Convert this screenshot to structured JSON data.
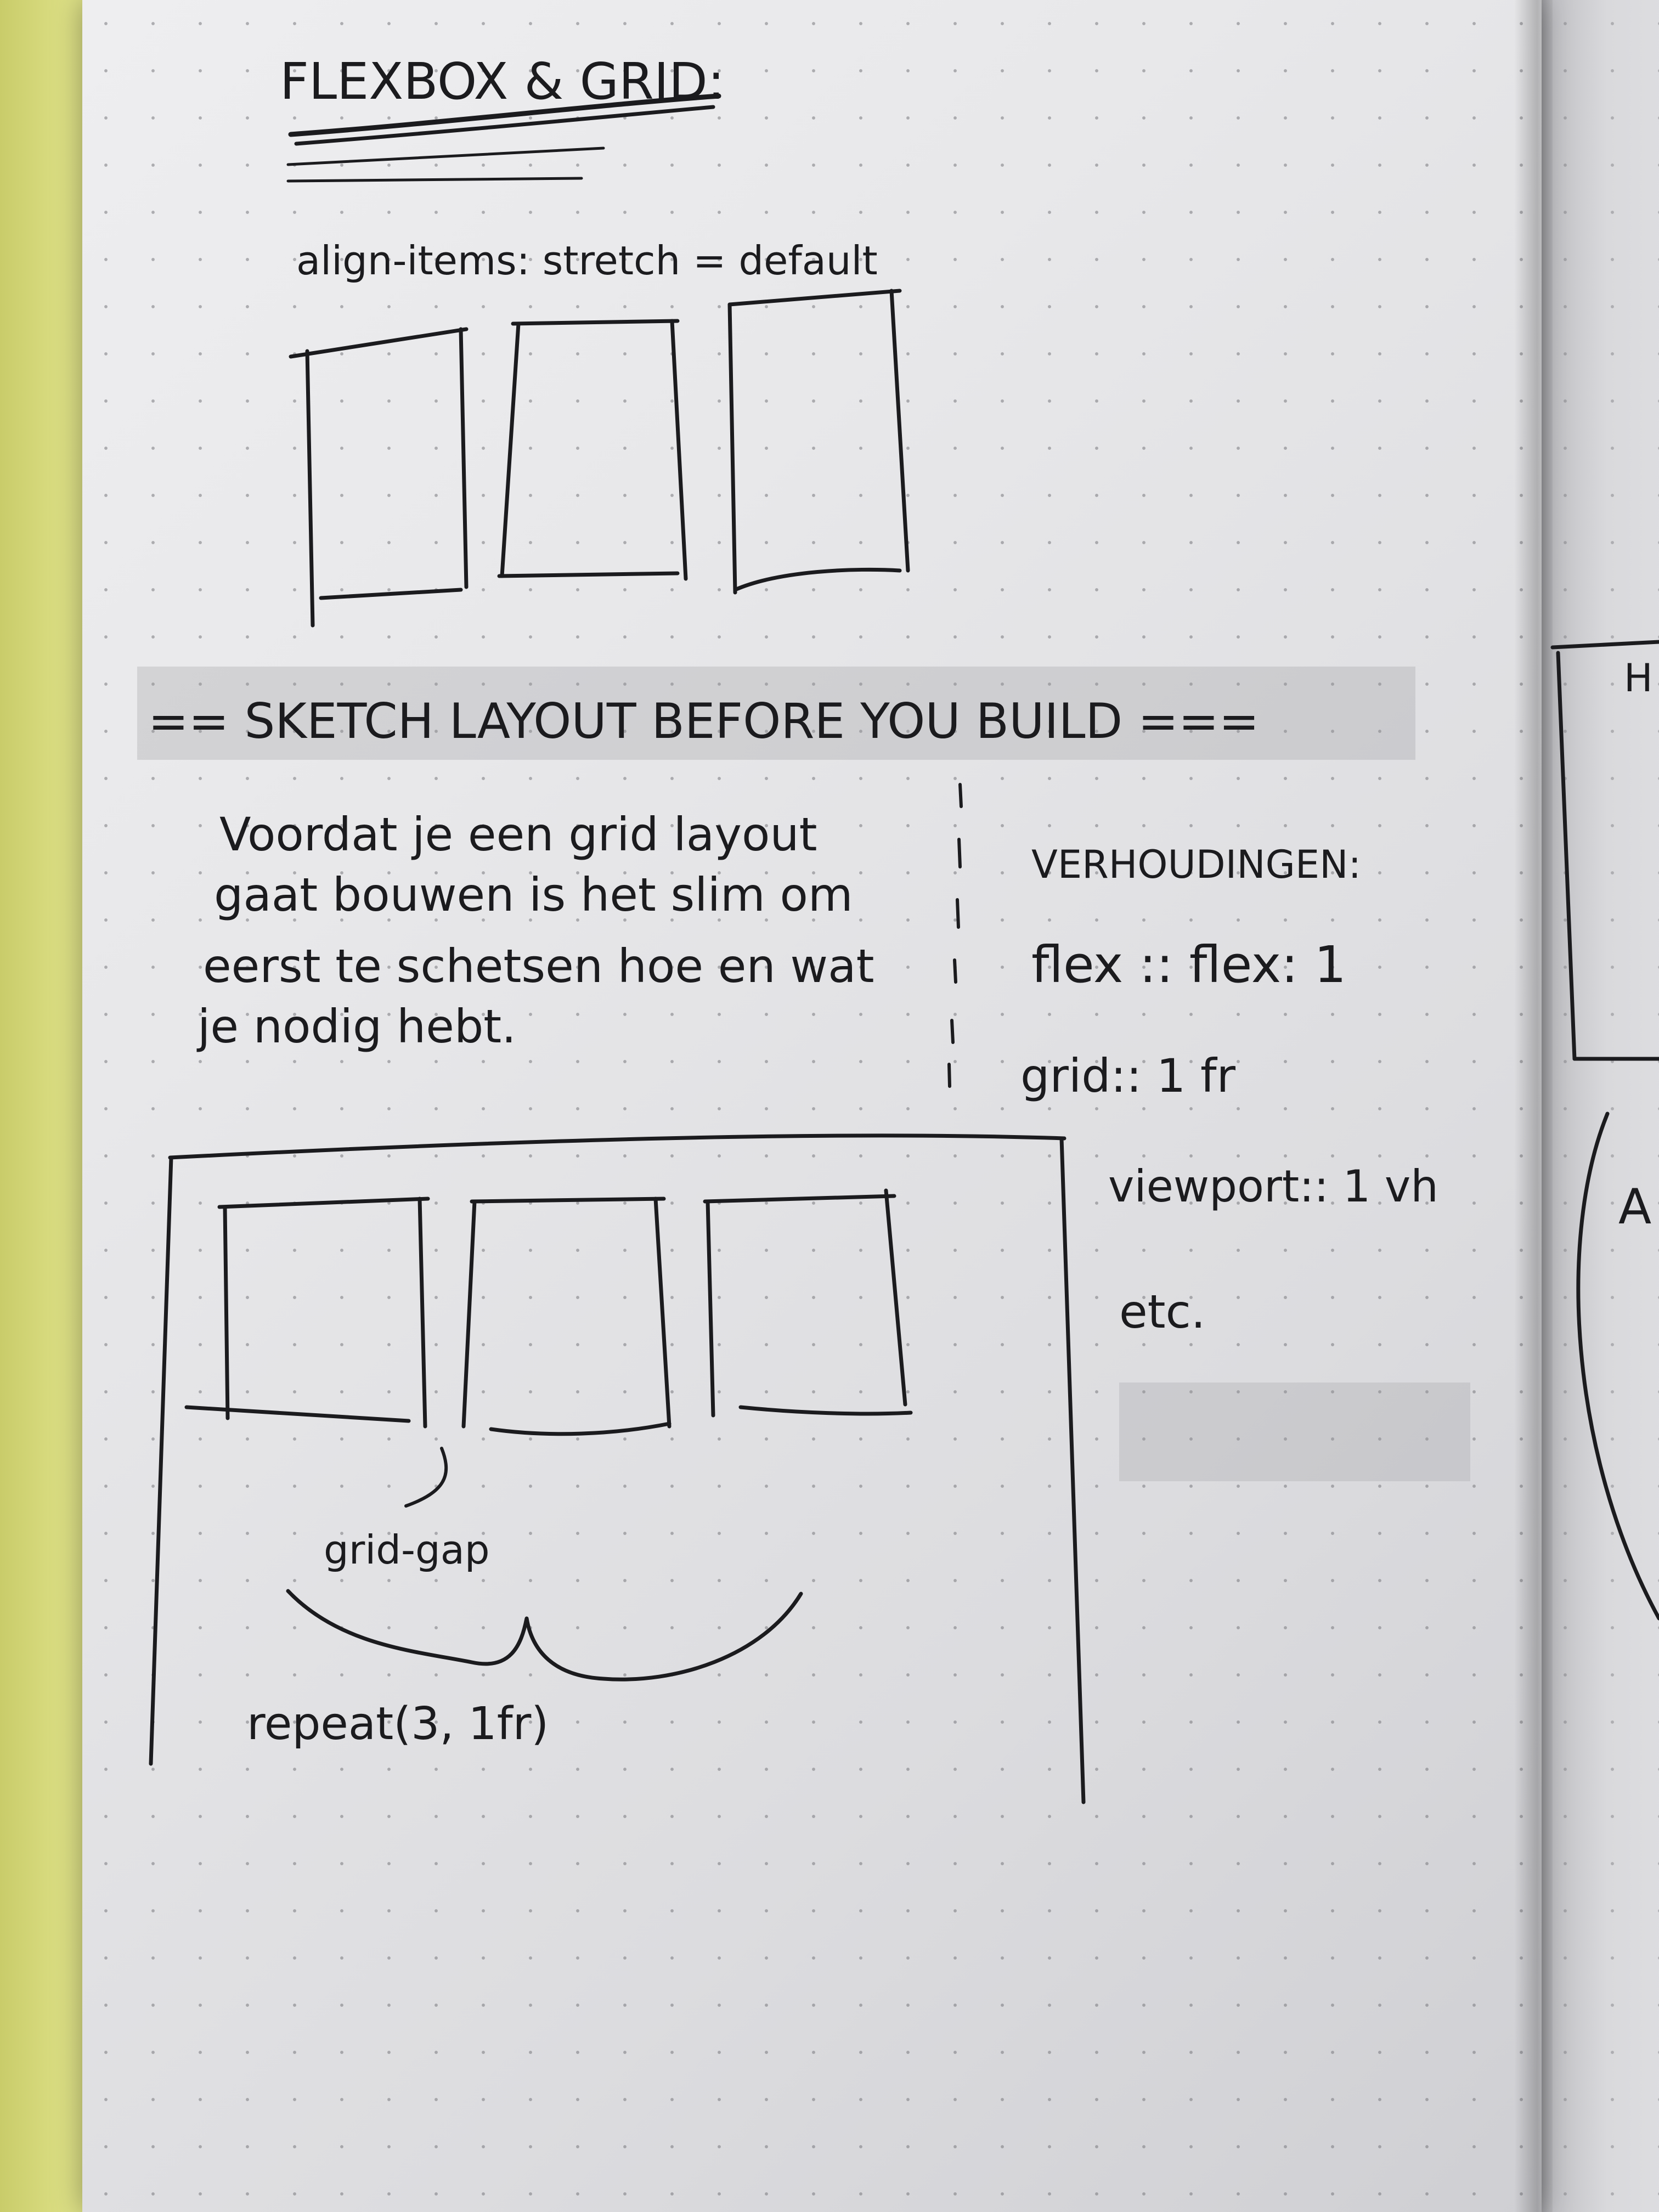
{
  "notebook": {
    "left_page": {
      "heading": "FLEXBOX & GRID:",
      "align_note": "align-items: stretch = default",
      "banner": "== SKETCH LAYOUT BEFORE YOU BUILD ===",
      "paragraph_lines": [
        "Voordat je een grid layout",
        "gaat bouwen is het slim om",
        "eerst te schetsen hoe en wat",
        "je nodig hebt."
      ],
      "ratios": {
        "title": "VERHOUDINGEN:",
        "flex": "flex :: flex: 1",
        "grid": "grid:: 1 fr",
        "viewport": "viewport:: 1 vh",
        "etc": "etc."
      },
      "grid_gap_label": "grid-gap",
      "repeat_label": "repeat(3, 1fr)"
    },
    "right_page": {
      "fragments": [
        "H",
        "A"
      ]
    },
    "colors": {
      "ink": "#1b1b1e",
      "paper": "#e8e8ea",
      "cover": "#dcdf84",
      "highlight": "#96969b"
    }
  }
}
